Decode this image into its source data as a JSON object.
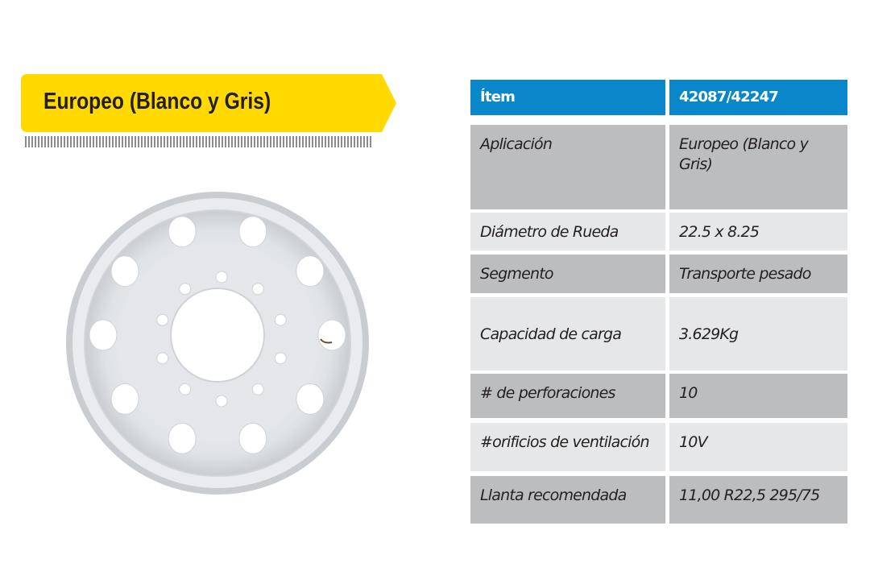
{
  "banner": {
    "title": "Europeo (Blanco y Gris)",
    "color": "#ffd900"
  },
  "table": {
    "header": {
      "label": "Ítem",
      "value": "42087/42247",
      "color": "#0a86cb"
    },
    "rows": [
      {
        "label": "Aplicación",
        "value": "Europeo (Blanco y Gris)"
      },
      {
        "label": "Diámetro de Rueda",
        "value": "22.5 x 8.25"
      },
      {
        "label": "Segmento",
        "value": "Transporte pesado"
      },
      {
        "label": "Capacidad de carga",
        "value": "3.629Kg"
      },
      {
        "label": "# de perforaciones",
        "value": "10"
      },
      {
        "label": "#orificios de ventilación",
        "value": "10V"
      },
      {
        "label": "Llanta recomendada",
        "value": "11,00 R22,5 295/75"
      }
    ]
  }
}
